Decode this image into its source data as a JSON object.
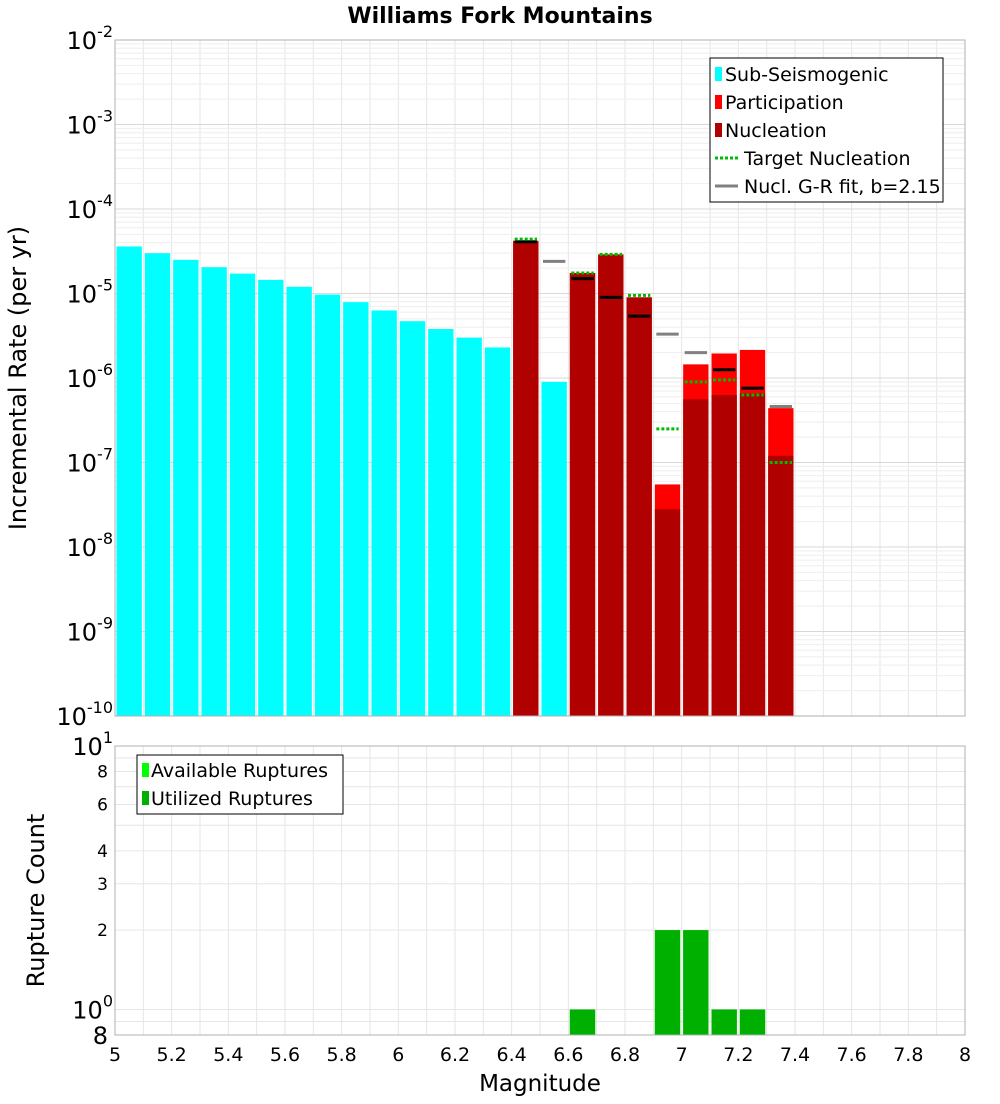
{
  "title": "Williams Fork Mountains",
  "colors": {
    "sub_seismogenic": "#00ffff",
    "participation": "#ff0000",
    "nucleation": "#b00000",
    "target_nucleation": "#00bb00",
    "gr_fit": "#808080",
    "available": "#00ff00",
    "utilized": "#00b000",
    "tick_mark": "#000000"
  },
  "chart_data": [
    {
      "type": "bar",
      "title": "Williams Fork Mountains",
      "xlabel": "",
      "ylabel": "Incremental Rate (per yr)",
      "yscale": "log",
      "xlim": [
        5,
        8
      ],
      "ylim": [
        1e-10,
        0.01
      ],
      "y_tick_labels": [
        {
          "base": "10",
          "exp": "-10",
          "value": 1e-10
        },
        {
          "base": "10",
          "exp": "-9",
          "value": 1e-09
        },
        {
          "base": "10",
          "exp": "-8",
          "value": 1e-08
        },
        {
          "base": "10",
          "exp": "-7",
          "value": 1e-07
        },
        {
          "base": "10",
          "exp": "-6",
          "value": 1e-06
        },
        {
          "base": "10",
          "exp": "-5",
          "value": 1e-05
        },
        {
          "base": "10",
          "exp": "-4",
          "value": 0.0001
        },
        {
          "base": "10",
          "exp": "-3",
          "value": 0.001
        },
        {
          "base": "10",
          "exp": "-2",
          "value": 0.01
        }
      ],
      "grid": true,
      "legend_position": "top-right",
      "legend": [
        "Sub-Seismogenic",
        "Participation",
        "Nucleation",
        "Target Nucleation",
        "Nucl. G-R fit, b=2.15"
      ],
      "bin_width": 0.1,
      "series": [
        {
          "name": "Sub-Seismogenic",
          "x": [
            5.05,
            5.15,
            5.25,
            5.35,
            5.45,
            5.55,
            5.65,
            5.75,
            5.85,
            5.95,
            6.05,
            6.15,
            6.25,
            6.35,
            6.55
          ],
          "values": [
            3.6e-05,
            3e-05,
            2.5e-05,
            2.05e-05,
            1.72e-05,
            1.45e-05,
            1.2e-05,
            9.7e-06,
            7.9e-06,
            6.3e-06,
            4.7e-06,
            3.8e-06,
            3e-06,
            2.3e-06,
            9e-07
          ]
        },
        {
          "name": "Participation",
          "x": [
            6.45,
            6.65,
            6.75,
            6.85,
            6.95,
            7.05,
            7.15,
            7.25,
            7.35
          ],
          "values": [
            4.2e-05,
            1.75e-05,
            2.9e-05,
            9e-06,
            5.5e-08,
            1.45e-06,
            1.95e-06,
            2.15e-06,
            4.4e-07
          ]
        },
        {
          "name": "Nucleation",
          "x": [
            6.45,
            6.65,
            6.75,
            6.85,
            6.95,
            7.05,
            7.15,
            7.25,
            7.35
          ],
          "values": [
            4.2e-05,
            1.75e-05,
            2.9e-05,
            9e-06,
            2.8e-08,
            5.6e-07,
            6.3e-07,
            6.6e-07,
            1.2e-07
          ]
        },
        {
          "name": "Target Nucleation",
          "x": [
            6.45,
            6.65,
            6.75,
            6.85,
            6.95,
            7.05,
            7.15,
            7.25,
            7.35
          ],
          "values": [
            4.4e-05,
            1.75e-05,
            2.9e-05,
            9.5e-06,
            2.5e-07,
            9e-07,
            9.5e-07,
            6.3e-07,
            1e-07
          ]
        },
        {
          "name": "Nucl. G-R fit, b=2.15",
          "x": [
            6.45,
            6.55,
            6.65,
            6.75,
            6.85,
            6.95,
            7.05,
            7.15,
            7.25,
            7.35
          ],
          "values": [
            4.1e-05,
            2.4e-05,
            1.5e-05,
            9e-06,
            5.4e-06,
            3.3e-06,
            2e-06,
            1.25e-06,
            7.6e-07,
            4.6e-07
          ]
        }
      ]
    },
    {
      "type": "bar",
      "title": "",
      "xlabel": "Magnitude",
      "ylabel": "Rupture Count",
      "yscale": "log",
      "xlim": [
        5,
        8
      ],
      "ylim": [
        0.8,
        10
      ],
      "x_tick_labels": [
        "5",
        "5.2",
        "5.4",
        "5.6",
        "5.8",
        "6",
        "6.2",
        "6.4",
        "6.6",
        "6.8",
        "7",
        "7.2",
        "7.4",
        "7.6",
        "7.8",
        "8"
      ],
      "y_tick_labels_minor": [
        "2",
        "3",
        "4",
        "6",
        "8"
      ],
      "y_tick_values_minor": [
        2,
        3,
        4,
        6,
        8
      ],
      "y_tick_labels_major": [
        {
          "base": "10",
          "exp": "0",
          "value": 1
        },
        {
          "base": "10",
          "exp": "1",
          "value": 10
        }
      ],
      "y_bottom_label": "8",
      "grid": true,
      "legend_position": "top-left",
      "legend": [
        "Available Ruptures",
        "Utilized Ruptures"
      ],
      "bin_width": 0.1,
      "series": [
        {
          "name": "Available Ruptures",
          "x": [
            6.65,
            6.95,
            7.05,
            7.15,
            7.25
          ],
          "values": [
            1,
            2,
            2,
            1,
            1
          ]
        },
        {
          "name": "Utilized Ruptures",
          "x": [
            6.65,
            6.95,
            7.05,
            7.15,
            7.25
          ],
          "values": [
            1,
            2,
            2,
            1,
            1
          ]
        }
      ]
    }
  ]
}
